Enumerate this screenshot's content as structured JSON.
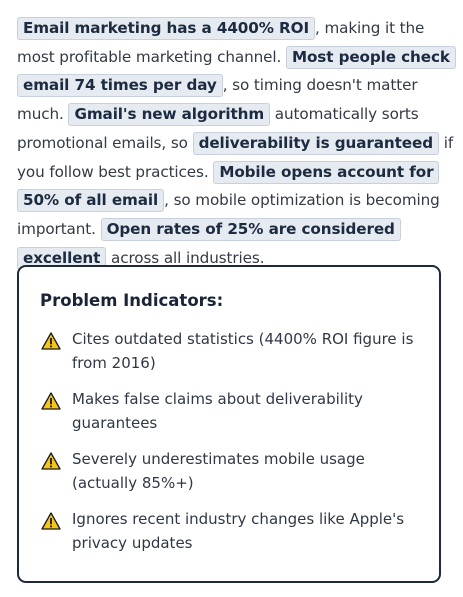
{
  "paragraph": [
    {
      "text": "Email marketing has a 4400% ROI",
      "hl": true
    },
    {
      "text": ", making it the most profitable marketing channel. ",
      "hl": false
    },
    {
      "text": "Most people check email 74 times per day",
      "hl": true
    },
    {
      "text": ", so timing doesn't matter much. ",
      "hl": false
    },
    {
      "text": "Gmail's new algorithm",
      "hl": true
    },
    {
      "text": " automatically sorts promotional emails, so ",
      "hl": false
    },
    {
      "text": "deliverability is guaranteed",
      "hl": true
    },
    {
      "text": " if you follow best practices. ",
      "hl": false
    },
    {
      "text": "Mobile opens account for 50% of all email",
      "hl": true
    },
    {
      "text": ", so mobile optimization is becoming important. ",
      "hl": false
    },
    {
      "text": "Open rates of 25% are considered excellent",
      "hl": true
    },
    {
      "text": " across all industries.",
      "hl": false
    }
  ],
  "panel": {
    "title": "Problem Indicators:",
    "icon": "warning-icon",
    "items": [
      "Cites outdated statistics (4400% ROI figure is from 2016)",
      "Makes false claims about deliverability guarantees",
      "Severely underestimates mobile usage (actually 85%+)",
      "Ignores recent industry changes like Apple's privacy updates"
    ]
  },
  "colors": {
    "highlight_bg": "#e6ebf2",
    "highlight_border": "#c7d0dc",
    "panel_border": "#1e2a3c",
    "warning_fill": "#f5c518"
  }
}
